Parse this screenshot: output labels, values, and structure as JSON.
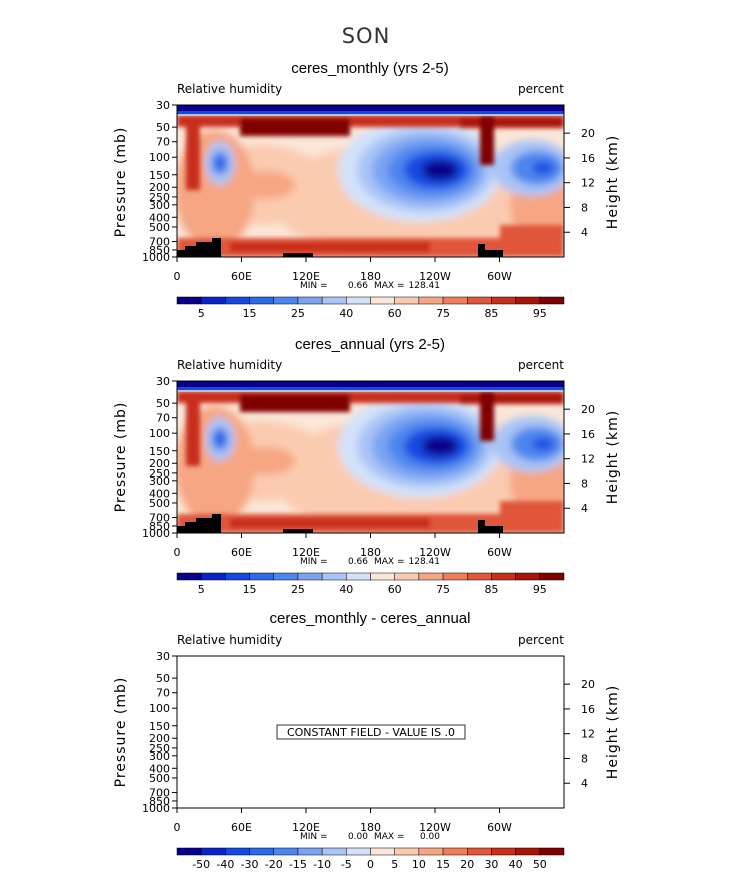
{
  "page_title": "SON",
  "chart_data": [
    {
      "type": "heatmap",
      "title": "ceres_monthly (yrs 2-5)",
      "field_label": "Relative humidity",
      "units": "percent",
      "ylabel": "Pressure (mb)",
      "ylabel_right": "Height (km)",
      "x_ticks": [
        "0",
        "60E",
        "120E",
        "180",
        "120W",
        "60W"
      ],
      "y_ticks": [
        "30",
        "50",
        "70",
        "100",
        "150",
        "200",
        "250",
        "300",
        "400",
        "500",
        "700",
        "850",
        "1000"
      ],
      "height_ticks": [
        "20",
        "16",
        "12",
        "8",
        "4"
      ],
      "min_label": "MIN =",
      "min_value": "0.66",
      "max_label": "MAX =",
      "max_value": "128.41",
      "colorbar_labels": [
        "5",
        "15",
        "25",
        "40",
        "60",
        "75",
        "85",
        "95"
      ],
      "contour_levels": [
        5,
        10,
        15,
        20,
        25,
        30,
        40,
        50,
        60,
        70,
        75,
        80,
        85,
        90,
        95
      ]
    },
    {
      "type": "heatmap",
      "title": "ceres_annual (yrs 2-5)",
      "field_label": "Relative humidity",
      "units": "percent",
      "ylabel": "Pressure (mb)",
      "ylabel_right": "Height (km)",
      "x_ticks": [
        "0",
        "60E",
        "120E",
        "180",
        "120W",
        "60W"
      ],
      "y_ticks": [
        "30",
        "50",
        "70",
        "100",
        "150",
        "200",
        "250",
        "300",
        "400",
        "500",
        "700",
        "850",
        "1000"
      ],
      "height_ticks": [
        "20",
        "16",
        "12",
        "8",
        "4"
      ],
      "min_label": "MIN =",
      "min_value": "0.66",
      "max_label": "MAX =",
      "max_value": "128.41",
      "colorbar_labels": [
        "5",
        "15",
        "25",
        "40",
        "60",
        "75",
        "85",
        "95"
      ],
      "contour_levels": [
        5,
        10,
        15,
        20,
        25,
        30,
        40,
        50,
        60,
        70,
        75,
        80,
        85,
        90,
        95
      ]
    },
    {
      "type": "heatmap",
      "title": "ceres_monthly - ceres_annual",
      "field_label": "Relative humidity",
      "units": "percent",
      "ylabel": "Pressure (mb)",
      "ylabel_right": "Height (km)",
      "x_ticks": [
        "0",
        "60E",
        "120E",
        "180",
        "120W",
        "60W"
      ],
      "y_ticks": [
        "30",
        "50",
        "70",
        "100",
        "150",
        "200",
        "250",
        "300",
        "400",
        "500",
        "700",
        "850",
        "1000"
      ],
      "height_ticks": [
        "20",
        "16",
        "12",
        "8",
        "4"
      ],
      "min_label": "MIN =",
      "min_value": "0.00",
      "max_label": "MAX =",
      "max_value": "0.00",
      "constant_field_text": "CONSTANT FIELD - VALUE IS .0",
      "colorbar_labels": [
        "-50",
        "-40",
        "-30",
        "-20",
        "-15",
        "-10",
        "-5",
        "0",
        "5",
        "10",
        "15",
        "20",
        "30",
        "40",
        "50"
      ],
      "contour_levels": [
        -50,
        -40,
        -30,
        -20,
        -15,
        -10,
        -5,
        0,
        5,
        10,
        15,
        20,
        30,
        40,
        50
      ]
    }
  ],
  "colors": {
    "rh_scale": [
      "#08008c",
      "#0a23c8",
      "#1548e0",
      "#2a6ae8",
      "#4d86ee",
      "#7aa4f2",
      "#a9c4f6",
      "#d3e2fa",
      "#fbe7d8",
      "#fbcbb0",
      "#f6a683",
      "#ee7f58",
      "#e0573a",
      "#c82e1a",
      "#a81408",
      "#800000"
    ],
    "diff_scale": [
      "#08008c",
      "#0a23c8",
      "#1548e0",
      "#2a6ae8",
      "#4d86ee",
      "#7aa4f2",
      "#a9c4f6",
      "#d3e2fa",
      "#fbe7d8",
      "#fbcbb0",
      "#f6a683",
      "#ee7f58",
      "#e0573a",
      "#c82e1a",
      "#a81408",
      "#800000"
    ],
    "topography": "#000000"
  }
}
